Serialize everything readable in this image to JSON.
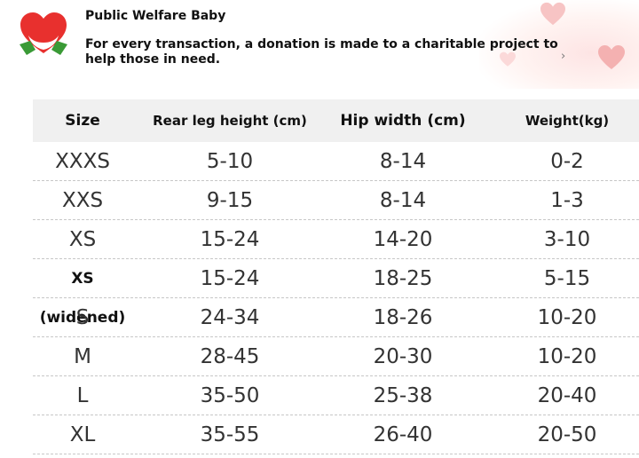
{
  "banner": {
    "title": "Public Welfare Baby",
    "text": "For every transaction, a donation is made to a charitable project to help those in need.",
    "arrow": "›",
    "logo_icon": "heart-hands-icon",
    "colors": {
      "heart": "#e8302e",
      "leaf": "#3a9a36"
    }
  },
  "table": {
    "headers": [
      "Size",
      "Rear leg height (cm)",
      "Hip width (cm)",
      "Weight(kg)"
    ],
    "rows": [
      {
        "size": "XXXS",
        "leg": "5-10",
        "hip": "8-14",
        "weight": "0-2"
      },
      {
        "size": "XXS",
        "leg": "9-15",
        "hip": "8-14",
        "weight": "1-3"
      },
      {
        "size": "XS",
        "leg": "15-24",
        "hip": "14-20",
        "weight": "3-10"
      },
      {
        "size": "XS (widened)",
        "leg": "15-24",
        "hip": "18-25",
        "weight": "5-15"
      },
      {
        "size": "S",
        "leg": "24-34",
        "hip": "18-26",
        "weight": "10-20"
      },
      {
        "size": "M",
        "leg": "28-45",
        "hip": "20-30",
        "weight": "10-20"
      },
      {
        "size": "L",
        "leg": "35-50",
        "hip": "25-38",
        "weight": "20-40"
      },
      {
        "size": "XL",
        "leg": "35-55",
        "hip": "26-40",
        "weight": "20-50"
      }
    ]
  }
}
